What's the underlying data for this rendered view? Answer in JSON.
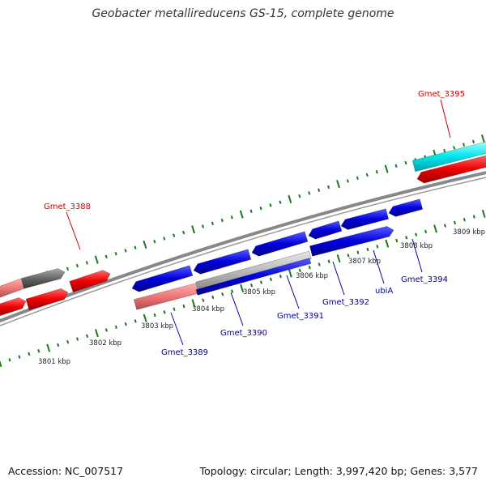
{
  "title": "Geobacter metallireducens GS-15, complete genome",
  "footer": {
    "accession": "Accession: NC_007517",
    "topology": "Topology: circular; Length: 3,997,420 bp; Genes: 3,577"
  },
  "colors": {
    "forward_red": "#ee0000",
    "light_red": "#ee7777",
    "blue": "#0000dd",
    "cyan": "#00e5ee",
    "gray_gene": "#666666",
    "backbone": "#888888",
    "ticks": "#1a7a1a",
    "label_red": "#cc0000",
    "label_blue": "#000099"
  },
  "scale_labels": [
    "3801 kbp",
    "3802 kbp",
    "3803 kbp",
    "3804 kbp",
    "3805 kbp",
    "3806 kbp",
    "3807 kbp",
    "3808 kbp",
    "3809 kbp"
  ],
  "gene_labels": [
    {
      "text": "Gmet_3388",
      "strand": "top"
    },
    {
      "text": "Gmet_3395",
      "strand": "top"
    },
    {
      "text": "Gmet_3389",
      "strand": "bottom"
    },
    {
      "text": "Gmet_3390",
      "strand": "bottom"
    },
    {
      "text": "Gmet_3391",
      "strand": "bottom"
    },
    {
      "text": "Gmet_3392",
      "strand": "bottom"
    },
    {
      "text": "ubiA",
      "strand": "bottom"
    },
    {
      "text": "Gmet_3394",
      "strand": "bottom"
    }
  ]
}
